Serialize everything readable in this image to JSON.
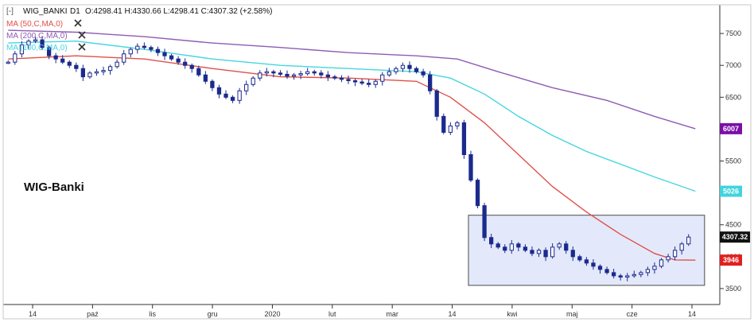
{
  "header": {
    "collapse_glyph": "[-]",
    "symbol": "WIG_BANKI",
    "timeframe": "D1",
    "ohlc": "O:4298.41  H:4330.66  L:4298.41  C:4307.32  (+2.58%)"
  },
  "indicators": [
    {
      "label": "MA (50,C,MA,0)",
      "color": "#e0504a",
      "close_icon": "close-icon"
    },
    {
      "label": "MA (200,C,MA,0)",
      "color": "#8e5bb5",
      "close_icon": "close-icon"
    },
    {
      "label": "MA (100,C,MA,0)",
      "color": "#45d5e0",
      "close_icon": "close-icon"
    }
  ],
  "overlay_text": "WIG-Banki",
  "price_badges": [
    {
      "label": "6007",
      "value": 6007,
      "color": "#7a0fa8"
    },
    {
      "label": "5026",
      "value": 5026,
      "color": "#3fd4de"
    },
    {
      "label": "4307.32",
      "value": 4307.32,
      "color": "#111111"
    },
    {
      "label": "3946",
      "value": 3946,
      "color": "#e02020"
    }
  ],
  "colors": {
    "candle": "#1b2a8c",
    "ma50": "#e0504a",
    "ma100": "#45d5e0",
    "ma200": "#8e5bb5",
    "box_fill": "#e3e9fb",
    "box_stroke": "#4a4a4a"
  },
  "chart_data": {
    "type": "candlestick",
    "x_labels": [
      "14",
      "paź",
      "lis",
      "gru",
      "2020",
      "lut",
      "mar",
      "14",
      "kwi",
      "maj",
      "cze",
      "14"
    ],
    "y_ticks": [
      3500,
      4000,
      4500,
      5000,
      5500,
      6000,
      6500,
      7000,
      7500
    ],
    "ylim": [
      3250,
      7950
    ],
    "close_series": [
      7050,
      7180,
      7320,
      7380,
      7400,
      7280,
      7150,
      7100,
      7050,
      7000,
      6950,
      6820,
      6880,
      6900,
      6920,
      6980,
      7050,
      7180,
      7250,
      7300,
      7280,
      7250,
      7200,
      7150,
      7100,
      7050,
      7000,
      6950,
      6850,
      6750,
      6650,
      6550,
      6500,
      6450,
      6600,
      6700,
      6800,
      6880,
      6900,
      6880,
      6860,
      6830,
      6850,
      6870,
      6900,
      6880,
      6850,
      6820,
      6800,
      6780,
      6760,
      6740,
      6720,
      6700,
      6750,
      6850,
      6900,
      6950,
      7000,
      6950,
      6900,
      6850,
      6600,
      6200,
      5950,
      6050,
      6100,
      5600,
      5200,
      4800,
      4300,
      4200,
      4150,
      4100,
      4200,
      4150,
      4100,
      4050,
      4100,
      4000,
      4150,
      4200,
      4100,
      4000,
      3950,
      3900,
      3850,
      3800,
      3750,
      3700,
      3680,
      3700,
      3720,
      3750,
      3800,
      3850,
      3950,
      4000,
      4100,
      4200,
      4307.32
    ],
    "ma50": {
      "name": "MA (50,C,MA,0)",
      "points": [
        [
          0,
          7100
        ],
        [
          10,
          7150
        ],
        [
          20,
          7100
        ],
        [
          30,
          6950
        ],
        [
          40,
          6820
        ],
        [
          50,
          6800
        ],
        [
          60,
          6750
        ],
        [
          65,
          6500
        ],
        [
          70,
          6100
        ],
        [
          75,
          5600
        ],
        [
          80,
          5100
        ],
        [
          85,
          4700
        ],
        [
          90,
          4350
        ],
        [
          95,
          4050
        ],
        [
          98,
          3950
        ],
        [
          101,
          3946
        ]
      ]
    },
    "ma100": {
      "name": "MA (100,C,MA,0)",
      "points": [
        [
          0,
          7350
        ],
        [
          10,
          7380
        ],
        [
          20,
          7250
        ],
        [
          30,
          7100
        ],
        [
          40,
          7000
        ],
        [
          50,
          6950
        ],
        [
          60,
          6900
        ],
        [
          65,
          6800
        ],
        [
          70,
          6550
        ],
        [
          75,
          6200
        ],
        [
          80,
          5900
        ],
        [
          85,
          5650
        ],
        [
          90,
          5450
        ],
        [
          95,
          5250
        ],
        [
          101,
          5026
        ]
      ]
    },
    "ma200": {
      "name": "MA (200,C,MA,0)",
      "points": [
        [
          0,
          7550
        ],
        [
          10,
          7520
        ],
        [
          20,
          7450
        ],
        [
          30,
          7350
        ],
        [
          40,
          7280
        ],
        [
          50,
          7200
        ],
        [
          60,
          7150
        ],
        [
          66,
          7100
        ],
        [
          72,
          6900
        ],
        [
          80,
          6650
        ],
        [
          88,
          6450
        ],
        [
          95,
          6200
        ],
        [
          101,
          6007
        ]
      ]
    },
    "highlight_box": {
      "x0": 68,
      "x1": 102,
      "y0": 3550,
      "y1": 4650
    }
  }
}
